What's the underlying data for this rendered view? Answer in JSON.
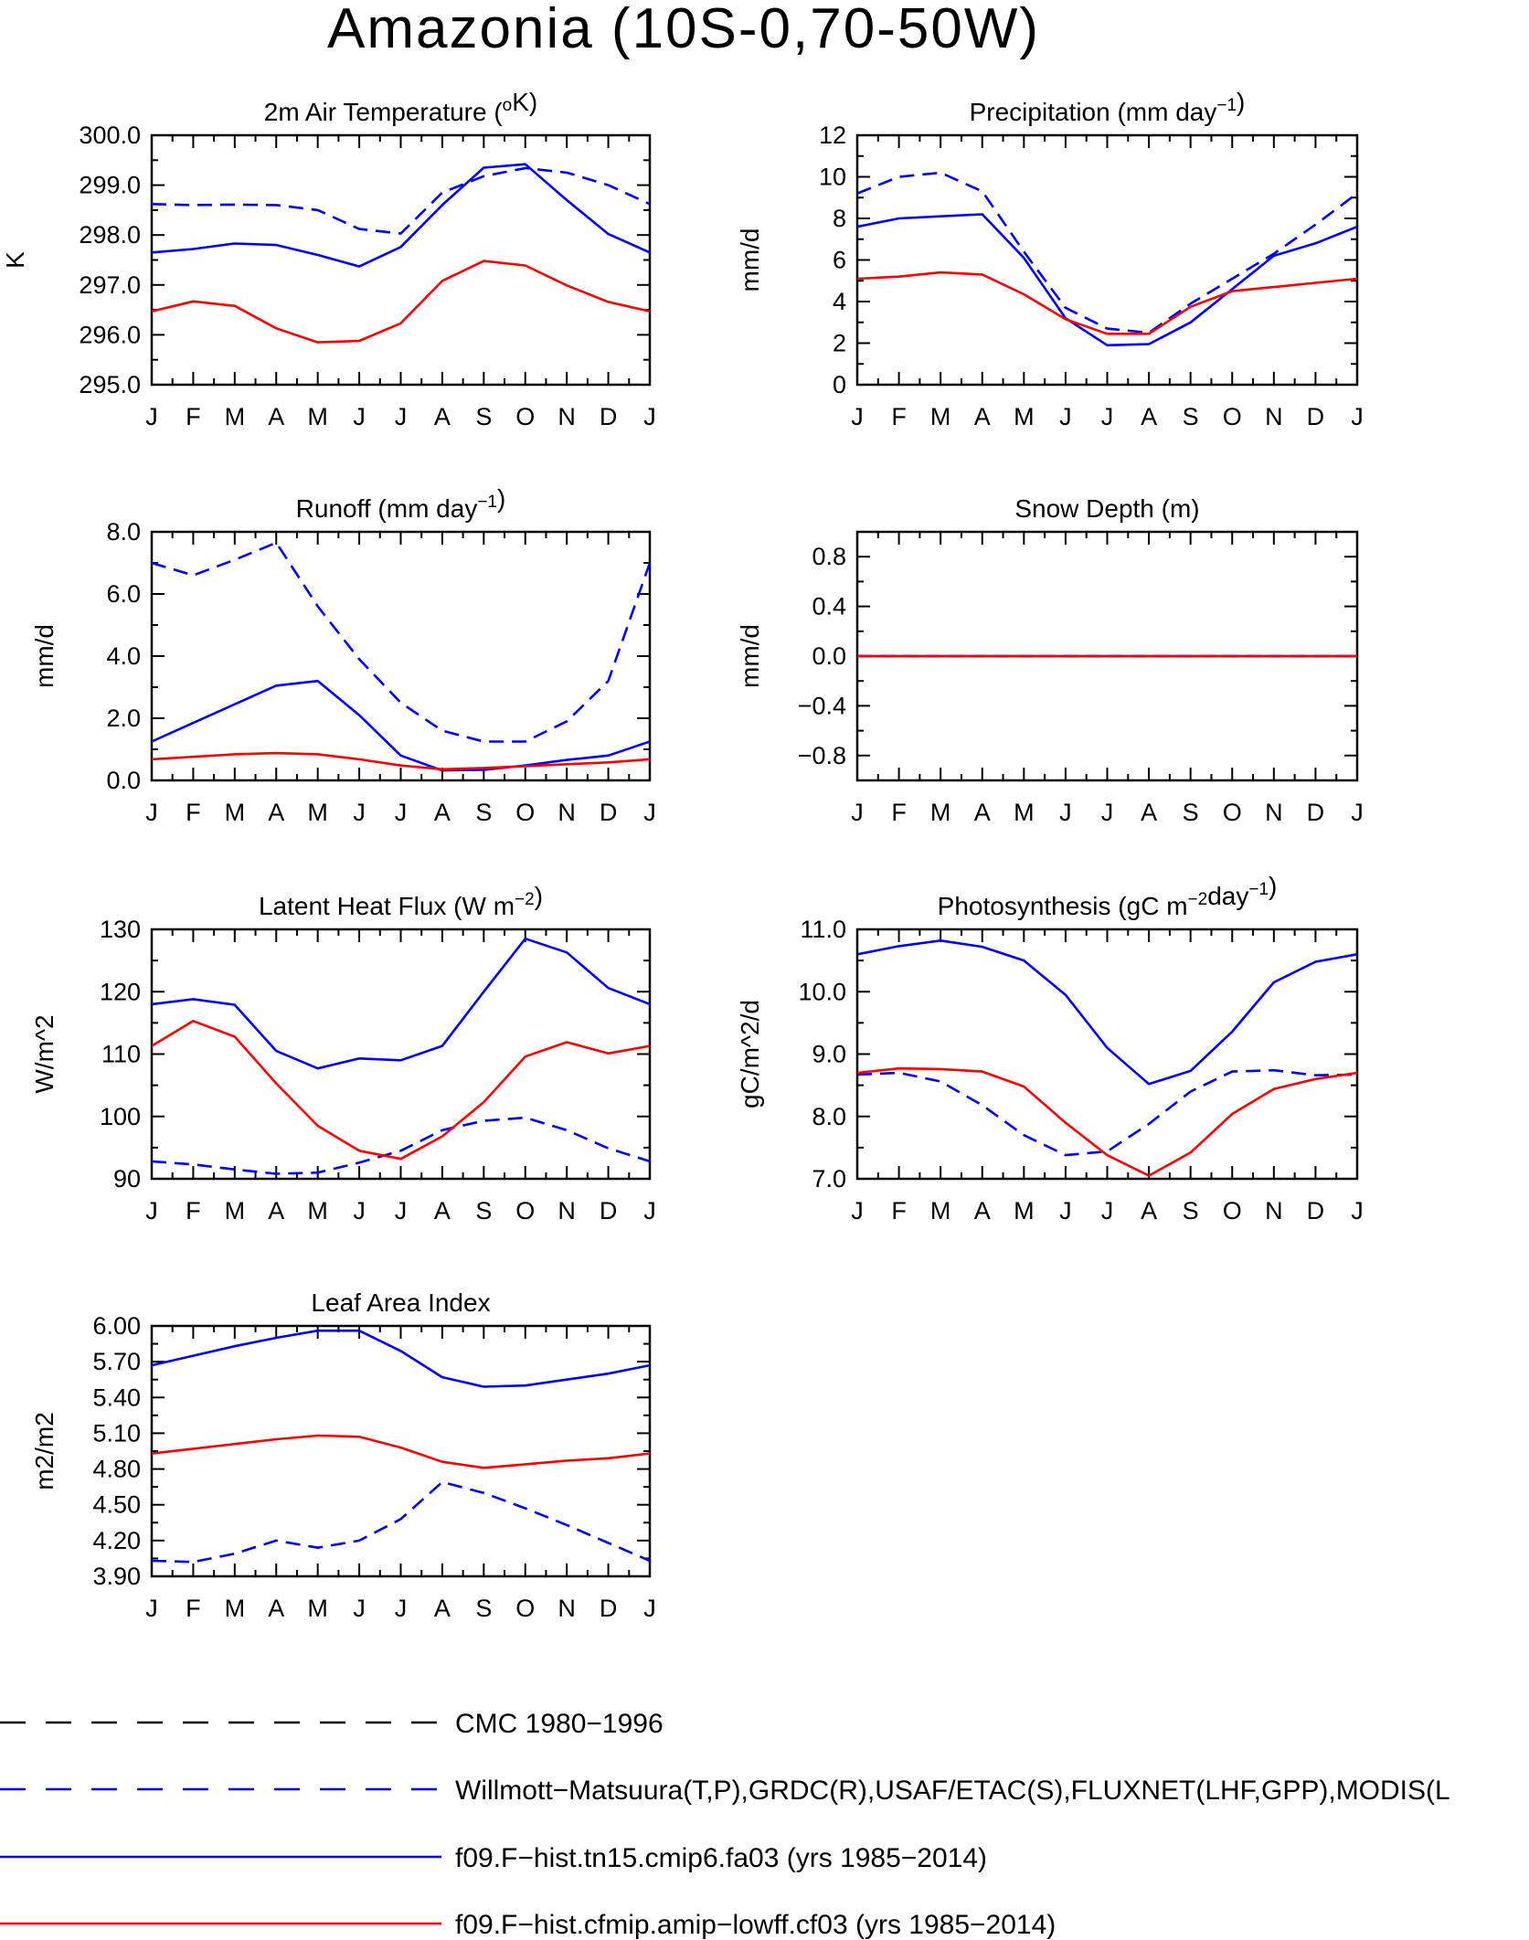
{
  "figure": {
    "title": "Amazonia (10S-0,70-50W)"
  },
  "months": [
    "J",
    "F",
    "M",
    "A",
    "M",
    "J",
    "J",
    "A",
    "S",
    "O",
    "N",
    "D",
    "J"
  ],
  "colors": {
    "black": "#000000",
    "blue": "#0000ff",
    "red": "#ff0000"
  },
  "legend": [
    {
      "label": "CMC 1980-1996",
      "color": "#000000",
      "dash": "long"
    },
    {
      "label": "Willmott-Matsuura(T,P),GRDC(R),USAF/ETAC(S),FLUXNET(LHF,GPP),MODIS(L",
      "color": "#0000ff",
      "dash": "long"
    },
    {
      "label": "f09.F-hist.tn15.cmip6.fa03 (yrs 1985-2014)",
      "color": "#0000ff",
      "dash": "solid"
    },
    {
      "label": "f09.F-hist.cfmip.amip-lowff.cf03 (yrs 1985-2014)",
      "color": "#ff0000",
      "dash": "solid"
    }
  ],
  "chart_data": [
    {
      "id": "temp",
      "type": "line",
      "title_main": "2m Air Temperature (",
      "title_sup": "o",
      "title_end": "K)",
      "ylabel": "K",
      "ylim": [
        295.0,
        300.0
      ],
      "yticks": [
        295.0,
        296.0,
        297.0,
        298.0,
        299.0,
        300.0
      ],
      "ytick_labels": [
        "295.0",
        "296.0",
        "297.0",
        "298.0",
        "299.0",
        "300.0"
      ],
      "series": [
        {
          "style": "obs-dashed",
          "color": "#0000ff",
          "values": [
            298.62,
            298.6,
            298.61,
            298.6,
            298.5,
            298.12,
            298.03,
            298.85,
            299.18,
            299.34,
            299.25,
            299.0,
            298.62
          ]
        },
        {
          "style": "solid",
          "color": "#0000ff",
          "values": [
            297.65,
            297.72,
            297.83,
            297.8,
            297.6,
            297.37,
            297.76,
            298.6,
            299.35,
            299.42,
            298.7,
            298.02,
            297.65
          ]
        },
        {
          "style": "solid",
          "color": "#ff0000",
          "values": [
            296.47,
            296.67,
            296.58,
            296.13,
            295.85,
            295.88,
            296.23,
            297.08,
            297.48,
            297.39,
            296.99,
            296.66,
            296.47
          ]
        }
      ]
    },
    {
      "id": "precip",
      "type": "line",
      "title_main": "Precipitation (mm day",
      "title_sup": "-1",
      "title_end": ")",
      "ylabel": "mm/d",
      "ylim": [
        0,
        12
      ],
      "yticks": [
        0,
        2,
        4,
        6,
        8,
        10,
        12
      ],
      "ytick_labels": [
        "0",
        "2",
        "4",
        "6",
        "8",
        "10",
        "12"
      ],
      "series": [
        {
          "style": "obs-dashed",
          "color": "#0000ff",
          "values": [
            9.2,
            10.0,
            10.2,
            9.3,
            6.4,
            3.7,
            2.7,
            2.5,
            3.9,
            5.1,
            6.3,
            7.7,
            9.2
          ]
        },
        {
          "style": "solid",
          "color": "#0000ff",
          "values": [
            7.6,
            8.0,
            8.1,
            8.2,
            6.1,
            3.2,
            1.9,
            1.95,
            3.0,
            4.6,
            6.2,
            6.8,
            7.6
          ]
        },
        {
          "style": "solid",
          "color": "#ff0000",
          "values": [
            5.1,
            5.2,
            5.4,
            5.3,
            4.35,
            3.15,
            2.45,
            2.45,
            3.75,
            4.5,
            4.7,
            4.9,
            5.1
          ]
        }
      ]
    },
    {
      "id": "runoff",
      "type": "line",
      "title_main": "Runoff (mm day",
      "title_sup": "-1",
      "title_end": ")",
      "ylabel": "mm/d",
      "ylim": [
        0,
        8
      ],
      "yticks": [
        0,
        2,
        4,
        6,
        8
      ],
      "ytick_labels": [
        "0.0",
        "2.0",
        "4.0",
        "6.0",
        "8.0"
      ],
      "series": [
        {
          "style": "obs-dashed",
          "color": "#0000ff",
          "values": [
            7.0,
            6.6,
            7.1,
            7.65,
            5.6,
            3.9,
            2.5,
            1.6,
            1.25,
            1.25,
            1.9,
            3.2,
            7.0
          ]
        },
        {
          "style": "solid",
          "color": "#0000ff",
          "values": [
            1.25,
            1.85,
            2.45,
            3.05,
            3.2,
            2.1,
            0.8,
            0.32,
            0.34,
            0.48,
            0.66,
            0.8,
            1.25
          ]
        },
        {
          "style": "solid",
          "color": "#ff0000",
          "values": [
            0.68,
            0.76,
            0.84,
            0.88,
            0.84,
            0.68,
            0.48,
            0.36,
            0.4,
            0.46,
            0.52,
            0.58,
            0.68
          ]
        }
      ]
    },
    {
      "id": "snow",
      "type": "line",
      "title_main": "Snow Depth (m)",
      "title_sup": "",
      "title_end": "",
      "ylabel": "mm/d",
      "ylim": [
        -1.0,
        1.0
      ],
      "yticks": [
        -0.8,
        -0.4,
        0.0,
        0.4,
        0.8
      ],
      "ytick_labels": [
        "-0.8",
        "-0.4",
        "0.0",
        "0.4",
        "0.8"
      ],
      "series": [
        {
          "style": "obs-dashed",
          "color": "#0000ff",
          "values": [
            0,
            0,
            0,
            0,
            0,
            0,
            0,
            0,
            0,
            0,
            0,
            0,
            0
          ]
        },
        {
          "style": "solid",
          "color": "#0000ff",
          "values": [
            0,
            0,
            0,
            0,
            0,
            0,
            0,
            0,
            0,
            0,
            0,
            0,
            0
          ]
        },
        {
          "style": "solid",
          "color": "#ff0000",
          "values": [
            0,
            0,
            0,
            0,
            0,
            0,
            0,
            0,
            0,
            0,
            0,
            0,
            0
          ]
        }
      ]
    },
    {
      "id": "lhf",
      "type": "line",
      "title_main": "Latent Heat Flux (W m",
      "title_sup": "-2",
      "title_end": ")",
      "ylabel": "W/m^2",
      "ylim": [
        90,
        130
      ],
      "yticks": [
        90,
        100,
        110,
        120,
        130
      ],
      "ytick_labels": [
        "90",
        "100",
        "110",
        "120",
        "130"
      ],
      "series": [
        {
          "style": "obs-dashed",
          "color": "#0000ff",
          "values": [
            92.8,
            92.3,
            91.5,
            90.8,
            91.0,
            92.6,
            94.5,
            97.8,
            99.3,
            99.8,
            97.8,
            94.9,
            92.8
          ]
        },
        {
          "style": "solid",
          "color": "#0000ff",
          "values": [
            118.0,
            118.8,
            117.9,
            110.5,
            107.7,
            109.3,
            109.0,
            111.3,
            120.0,
            128.5,
            126.3,
            120.6,
            118.0
          ]
        },
        {
          "style": "solid",
          "color": "#ff0000",
          "values": [
            111.3,
            115.3,
            112.8,
            105.3,
            98.5,
            94.5,
            93.2,
            96.8,
            102.3,
            109.6,
            111.9,
            110.1,
            111.3
          ]
        }
      ]
    },
    {
      "id": "gpp",
      "type": "line",
      "title_main": "Photosynthesis (gC m",
      "title_sup": "-2",
      "title_mid": "day",
      "title_sup2": "-1",
      "title_end": ")",
      "ylabel": "gC/m^2/d",
      "ylim": [
        7.0,
        11.0
      ],
      "yticks": [
        7.0,
        8.0,
        9.0,
        10.0,
        11.0
      ],
      "ytick_labels": [
        "7.0",
        "8.0",
        "9.0",
        "10.0",
        "11.0"
      ],
      "series": [
        {
          "style": "obs-dashed",
          "color": "#0000ff",
          "values": [
            8.67,
            8.7,
            8.56,
            8.18,
            7.7,
            7.38,
            7.44,
            7.88,
            8.4,
            8.72,
            8.74,
            8.66,
            8.67
          ]
        },
        {
          "style": "solid",
          "color": "#0000ff",
          "values": [
            10.6,
            10.73,
            10.82,
            10.72,
            10.5,
            9.95,
            9.1,
            8.52,
            8.73,
            9.36,
            10.15,
            10.48,
            10.6
          ]
        },
        {
          "style": "solid",
          "color": "#ff0000",
          "values": [
            8.7,
            8.77,
            8.76,
            8.72,
            8.48,
            7.9,
            7.38,
            7.05,
            7.42,
            8.04,
            8.44,
            8.6,
            8.7
          ]
        }
      ]
    },
    {
      "id": "lai",
      "type": "line",
      "title_main": "Leaf Area Index",
      "title_sup": "",
      "title_end": "",
      "ylabel": "m2/m2",
      "ylim": [
        3.9,
        6.0
      ],
      "yticks": [
        3.9,
        4.2,
        4.5,
        4.8,
        5.1,
        5.4,
        5.7,
        6.0
      ],
      "ytick_labels": [
        "3.90",
        "4.20",
        "4.50",
        "4.80",
        "5.10",
        "5.40",
        "5.70",
        "6.00"
      ],
      "series": [
        {
          "style": "obs-dashed",
          "color": "#0000ff",
          "values": [
            4.03,
            4.02,
            4.09,
            4.2,
            4.14,
            4.2,
            4.38,
            4.69,
            4.6,
            4.47,
            4.33,
            4.18,
            4.03
          ]
        },
        {
          "style": "solid",
          "color": "#0000ff",
          "values": [
            5.67,
            5.75,
            5.83,
            5.9,
            5.96,
            5.96,
            5.79,
            5.57,
            5.49,
            5.5,
            5.55,
            5.6,
            5.67
          ]
        },
        {
          "style": "solid",
          "color": "#ff0000",
          "values": [
            4.93,
            4.97,
            5.01,
            5.05,
            5.08,
            5.07,
            4.98,
            4.86,
            4.81,
            4.84,
            4.87,
            4.89,
            4.93
          ]
        }
      ]
    }
  ]
}
